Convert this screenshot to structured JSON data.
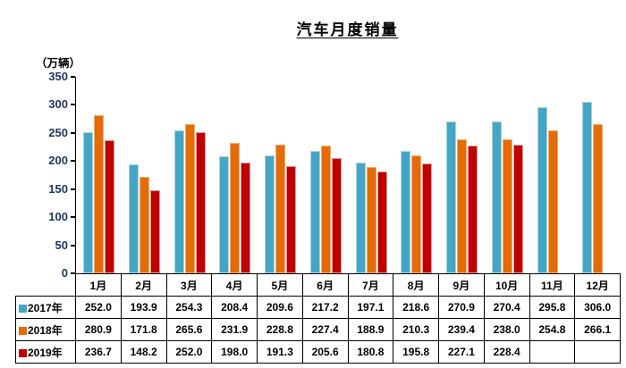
{
  "title": "汽车月度销量",
  "y_axis": {
    "unit_label": "（万辆）",
    "tick_labels": [
      "350",
      "300",
      "250",
      "200",
      "150",
      "100",
      "50",
      "0"
    ],
    "tick_color": "#1F3864"
  },
  "chart_data": {
    "type": "bar",
    "title": "汽车月度销量",
    "ylabel": "（万辆）",
    "categories": [
      "1月",
      "2月",
      "3月",
      "4月",
      "5月",
      "6月",
      "7月",
      "8月",
      "9月",
      "10月",
      "11月",
      "12月"
    ],
    "series": [
      {
        "name": "2017年",
        "color": "#46A5C5",
        "edge": "#A9D4E2",
        "values": [
          252.0,
          193.9,
          254.3,
          208.4,
          209.6,
          217.2,
          197.1,
          218.6,
          270.9,
          270.4,
          295.8,
          306.0
        ]
      },
      {
        "name": "2018年",
        "color": "#E36C09",
        "edge": "#F3AC69",
        "values": [
          280.9,
          171.8,
          265.6,
          231.9,
          228.8,
          227.4,
          188.9,
          210.3,
          239.4,
          238.0,
          254.8,
          266.1
        ]
      },
      {
        "name": "2019年",
        "color": "#C00000",
        "edge": "#DE9B9B",
        "values": [
          236.7,
          148.2,
          252.0,
          198.0,
          191.3,
          205.6,
          180.8,
          195.8,
          227.1,
          228.4,
          null,
          null
        ]
      }
    ],
    "ylim": [
      0,
      350
    ],
    "ytick_step": 50,
    "grid": false,
    "legend_position": "data-table-row-headers",
    "value_format_decimals": 1
  }
}
